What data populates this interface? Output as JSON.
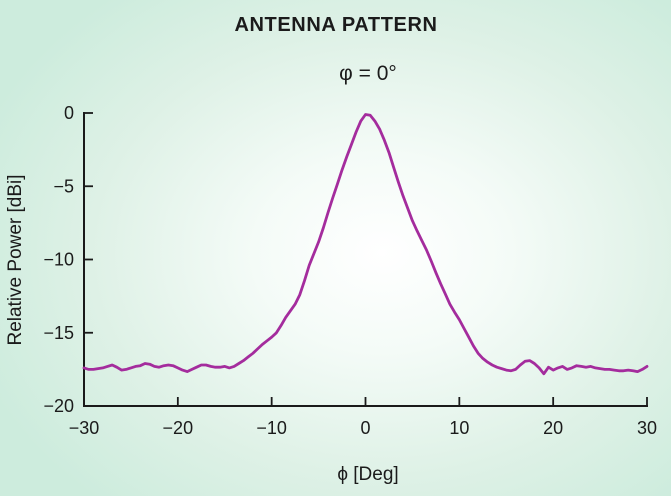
{
  "colors": {
    "background_edge": "#cdecdd",
    "background_center": "#ffffff",
    "curve": "#a42c9d",
    "axis": "#1a1a1a",
    "text": "#1b1b1b"
  },
  "chart_data": {
    "type": "line",
    "title": "ANTENNA PATTERN",
    "subtitle": "φ = 0°",
    "xlabel": "ϕ [Deg]",
    "ylabel": "Relative Power [dBi]",
    "xlim": [
      -30,
      30
    ],
    "ylim": [
      -20,
      0
    ],
    "xticks": [
      -30,
      -20,
      -10,
      0,
      10,
      20,
      30
    ],
    "yticks": [
      0,
      -5,
      -10,
      -15,
      -20
    ],
    "grid": false,
    "legend": null,
    "series": [
      {
        "name": "relative-power",
        "color": "#a42c9d",
        "points": [
          [
            -30,
            -17.4
          ],
          [
            -29.5,
            -17.5
          ],
          [
            -29,
            -17.5
          ],
          [
            -28.5,
            -17.45
          ],
          [
            -28,
            -17.4
          ],
          [
            -27.5,
            -17.3
          ],
          [
            -27,
            -17.2
          ],
          [
            -26.5,
            -17.35
          ],
          [
            -26,
            -17.55
          ],
          [
            -25.5,
            -17.5
          ],
          [
            -25,
            -17.4
          ],
          [
            -24.5,
            -17.3
          ],
          [
            -24,
            -17.25
          ],
          [
            -23.5,
            -17.1
          ],
          [
            -23,
            -17.15
          ],
          [
            -22.5,
            -17.3
          ],
          [
            -22,
            -17.35
          ],
          [
            -21.5,
            -17.25
          ],
          [
            -21,
            -17.2
          ],
          [
            -20.5,
            -17.25
          ],
          [
            -20,
            -17.4
          ],
          [
            -19.5,
            -17.55
          ],
          [
            -19,
            -17.65
          ],
          [
            -18.5,
            -17.5
          ],
          [
            -18,
            -17.35
          ],
          [
            -17.5,
            -17.2
          ],
          [
            -17,
            -17.2
          ],
          [
            -16.5,
            -17.3
          ],
          [
            -16,
            -17.35
          ],
          [
            -15.5,
            -17.35
          ],
          [
            -15,
            -17.3
          ],
          [
            -14.5,
            -17.4
          ],
          [
            -14,
            -17.3
          ],
          [
            -13.5,
            -17.1
          ],
          [
            -13,
            -16.9
          ],
          [
            -12.5,
            -16.65
          ],
          [
            -12,
            -16.4
          ],
          [
            -11.5,
            -16.1
          ],
          [
            -11,
            -15.8
          ],
          [
            -10.5,
            -15.55
          ],
          [
            -10,
            -15.3
          ],
          [
            -9.5,
            -15.0
          ],
          [
            -9,
            -14.5
          ],
          [
            -8.5,
            -13.95
          ],
          [
            -8,
            -13.5
          ],
          [
            -7.5,
            -13.05
          ],
          [
            -7,
            -12.4
          ],
          [
            -6.5,
            -11.45
          ],
          [
            -6,
            -10.4
          ],
          [
            -5.5,
            -9.6
          ],
          [
            -5,
            -8.8
          ],
          [
            -4.5,
            -7.85
          ],
          [
            -4,
            -6.8
          ],
          [
            -3.5,
            -5.8
          ],
          [
            -3,
            -4.85
          ],
          [
            -2.5,
            -3.9
          ],
          [
            -2,
            -3.0
          ],
          [
            -1.5,
            -2.15
          ],
          [
            -1,
            -1.3
          ],
          [
            -0.5,
            -0.55
          ],
          [
            0,
            -0.1
          ],
          [
            0.5,
            -0.15
          ],
          [
            1,
            -0.55
          ],
          [
            1.5,
            -1.1
          ],
          [
            2,
            -1.85
          ],
          [
            2.5,
            -2.7
          ],
          [
            3,
            -3.7
          ],
          [
            3.5,
            -4.7
          ],
          [
            4,
            -5.65
          ],
          [
            4.5,
            -6.5
          ],
          [
            5,
            -7.35
          ],
          [
            5.5,
            -8.05
          ],
          [
            6,
            -8.7
          ],
          [
            6.5,
            -9.35
          ],
          [
            7,
            -10.1
          ],
          [
            7.5,
            -10.9
          ],
          [
            8,
            -11.65
          ],
          [
            8.5,
            -12.35
          ],
          [
            9,
            -13.05
          ],
          [
            9.5,
            -13.6
          ],
          [
            10,
            -14.1
          ],
          [
            10.5,
            -14.7
          ],
          [
            11,
            -15.3
          ],
          [
            11.5,
            -15.9
          ],
          [
            12,
            -16.4
          ],
          [
            12.5,
            -16.75
          ],
          [
            13,
            -17.0
          ],
          [
            13.5,
            -17.2
          ],
          [
            14,
            -17.35
          ],
          [
            14.5,
            -17.45
          ],
          [
            15,
            -17.55
          ],
          [
            15.5,
            -17.6
          ],
          [
            16,
            -17.5
          ],
          [
            16.5,
            -17.2
          ],
          [
            17,
            -16.95
          ],
          [
            17.5,
            -16.9
          ],
          [
            18,
            -17.1
          ],
          [
            18.5,
            -17.4
          ],
          [
            19,
            -17.8
          ],
          [
            19.5,
            -17.35
          ],
          [
            20,
            -17.55
          ],
          [
            20.5,
            -17.4
          ],
          [
            21,
            -17.3
          ],
          [
            21.5,
            -17.5
          ],
          [
            22,
            -17.4
          ],
          [
            22.5,
            -17.25
          ],
          [
            23,
            -17.3
          ],
          [
            23.5,
            -17.35
          ],
          [
            24,
            -17.3
          ],
          [
            24.5,
            -17.4
          ],
          [
            25,
            -17.45
          ],
          [
            25.5,
            -17.5
          ],
          [
            26,
            -17.5
          ],
          [
            26.5,
            -17.55
          ],
          [
            27,
            -17.6
          ],
          [
            27.5,
            -17.6
          ],
          [
            28,
            -17.55
          ],
          [
            28.5,
            -17.6
          ],
          [
            29,
            -17.65
          ],
          [
            29.5,
            -17.5
          ],
          [
            30,
            -17.3
          ]
        ]
      }
    ]
  }
}
